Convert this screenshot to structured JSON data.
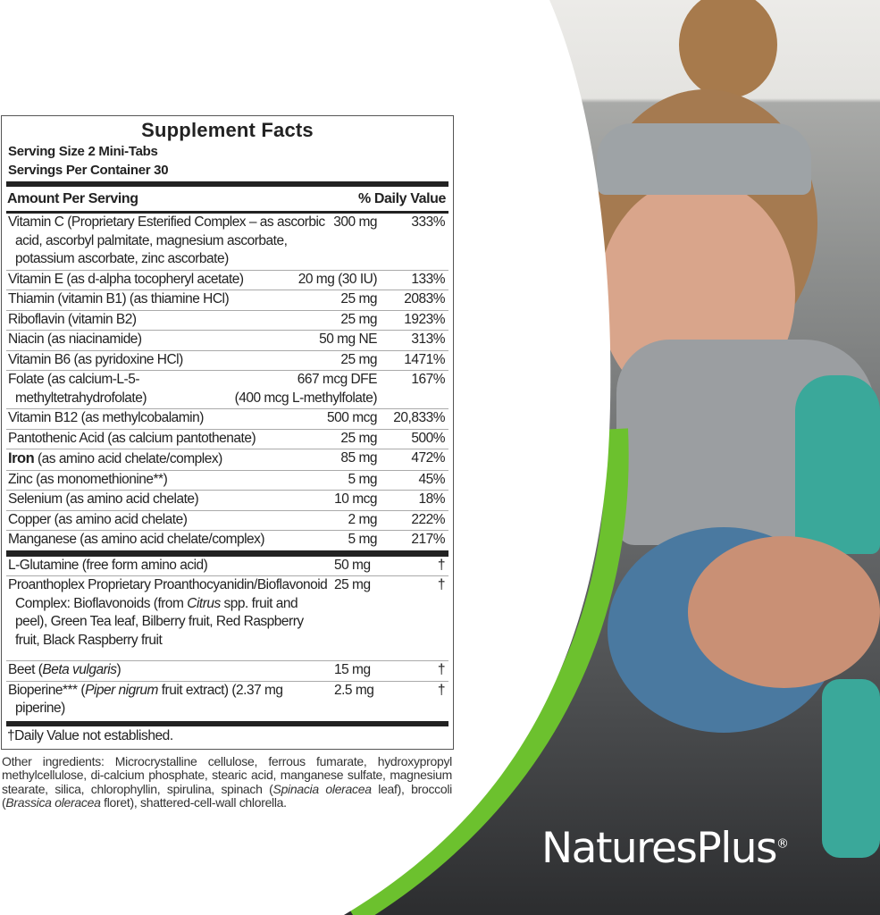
{
  "facts": {
    "title": "Supplement Facts",
    "serving_size": "Serving Size 2 Mini-Tabs",
    "servings_per_container": "Servings Per Container 30",
    "header_amount": "Amount Per Serving",
    "header_dv": "% Daily Value",
    "vitamins_minerals": [
      {
        "name": [
          {
            "t": "Vitamin C (Proprietary Esterified Complex – as ascorbic acid, ascorbyl palmitate, magnesium ascorbate, potassium ascorbate, zinc ascorbate)"
          }
        ],
        "amount": "300 mg",
        "dv": "333%"
      },
      {
        "name": [
          {
            "t": "Vitamin E (as d-alpha tocopheryl acetate)"
          }
        ],
        "amount": "20 mg (30 IU)",
        "dv": "133%"
      },
      {
        "name": [
          {
            "t": "Thiamin (vitamin B1) (as thiamine HCl)"
          }
        ],
        "amount": "25 mg",
        "dv": "2083%"
      },
      {
        "name": [
          {
            "t": "Riboflavin (vitamin B2)"
          }
        ],
        "amount": "25 mg",
        "dv": "1923%"
      },
      {
        "name": [
          {
            "t": "Niacin (as niacinamide)"
          }
        ],
        "amount": "50 mg NE",
        "dv": "313%"
      },
      {
        "name": [
          {
            "t": "Vitamin B6 (as pyridoxine HCl)"
          }
        ],
        "amount": "25 mg",
        "dv": "1471%"
      },
      {
        "name": [
          {
            "t": "Folate (as calcium-L-5-methyltetrahydrofolate)"
          }
        ],
        "amount": "667 mcg DFE",
        "amount2": "(400 mcg L-methylfolate)",
        "dv": "167%"
      },
      {
        "name": [
          {
            "t": "Vitamin B12 (as methylcobalamin)"
          }
        ],
        "amount": "500 mcg",
        "dv": "20,833%"
      },
      {
        "name": [
          {
            "t": "Pantothenic Acid (as calcium pantothenate)"
          }
        ],
        "amount": "25 mg",
        "dv": "500%"
      },
      {
        "name": [
          {
            "t": "Iron",
            "b": true
          },
          {
            "t": " (as amino acid chelate/complex)"
          }
        ],
        "amount": "85 mg",
        "dv": "472%"
      },
      {
        "name": [
          {
            "t": "Zinc (as monomethionine**)"
          }
        ],
        "amount": "5 mg",
        "dv": "45%"
      },
      {
        "name": [
          {
            "t": "Selenium (as amino acid chelate)"
          }
        ],
        "amount": "10 mcg",
        "dv": "18%"
      },
      {
        "name": [
          {
            "t": "Copper (as amino acid chelate)"
          }
        ],
        "amount": "2 mg",
        "dv": "222%"
      },
      {
        "name": [
          {
            "t": "Manganese (as amino acid chelate/complex)"
          }
        ],
        "amount": "5 mg",
        "dv": "217%"
      }
    ],
    "other_nutrients": [
      {
        "name": [
          {
            "t": "L-Glutamine (free form amino acid)"
          }
        ],
        "amount": "50 mg",
        "dv": "†"
      },
      {
        "name": [
          {
            "t": "Proanthoplex Proprietary Proanthocyanidin/Bioflavonoid Complex: Bioflavonoids (from "
          },
          {
            "t": "Citrus",
            "i": true
          },
          {
            "t": " spp. fruit and peel), Green Tea leaf, Bilberry fruit, Red Raspberry fruit, Black Raspberry fruit"
          }
        ],
        "amount": "25 mg",
        "dv": "†"
      },
      {
        "name": [
          {
            "t": "Beet ("
          },
          {
            "t": "Beta vulgaris",
            "i": true
          },
          {
            "t": ")"
          }
        ],
        "amount": "15 mg",
        "dv": "†"
      },
      {
        "name": [
          {
            "t": "Bioperine*** ("
          },
          {
            "t": "Piper nigrum",
            "i": true
          },
          {
            "t": " fruit extract) (2.37 mg piperine)"
          }
        ],
        "amount": "2.5 mg",
        "dv": "†"
      }
    ],
    "footnote": "†Daily Value not established."
  },
  "other_ingredients": [
    {
      "t": "Other ingredients: Microcrystalline cellulose, ferrous fumarate, hydroxypropyl methylcellulose, di-calcium phosphate, stearic acid, manganese sulfate, magnesium stearate, silica, chlorophyllin, spirulina, spinach ("
    },
    {
      "t": "Spinacia oleracea",
      "i": true
    },
    {
      "t": " leaf), broccoli ("
    },
    {
      "t": "Brassica oleracea",
      "i": true
    },
    {
      "t": " floret), shattered-cell-wall chlorella."
    }
  ],
  "brand": {
    "logo_text": "NaturesPlus",
    "registered": "®"
  },
  "colors": {
    "accent_green": "#6cc12e",
    "text": "#222222"
  }
}
